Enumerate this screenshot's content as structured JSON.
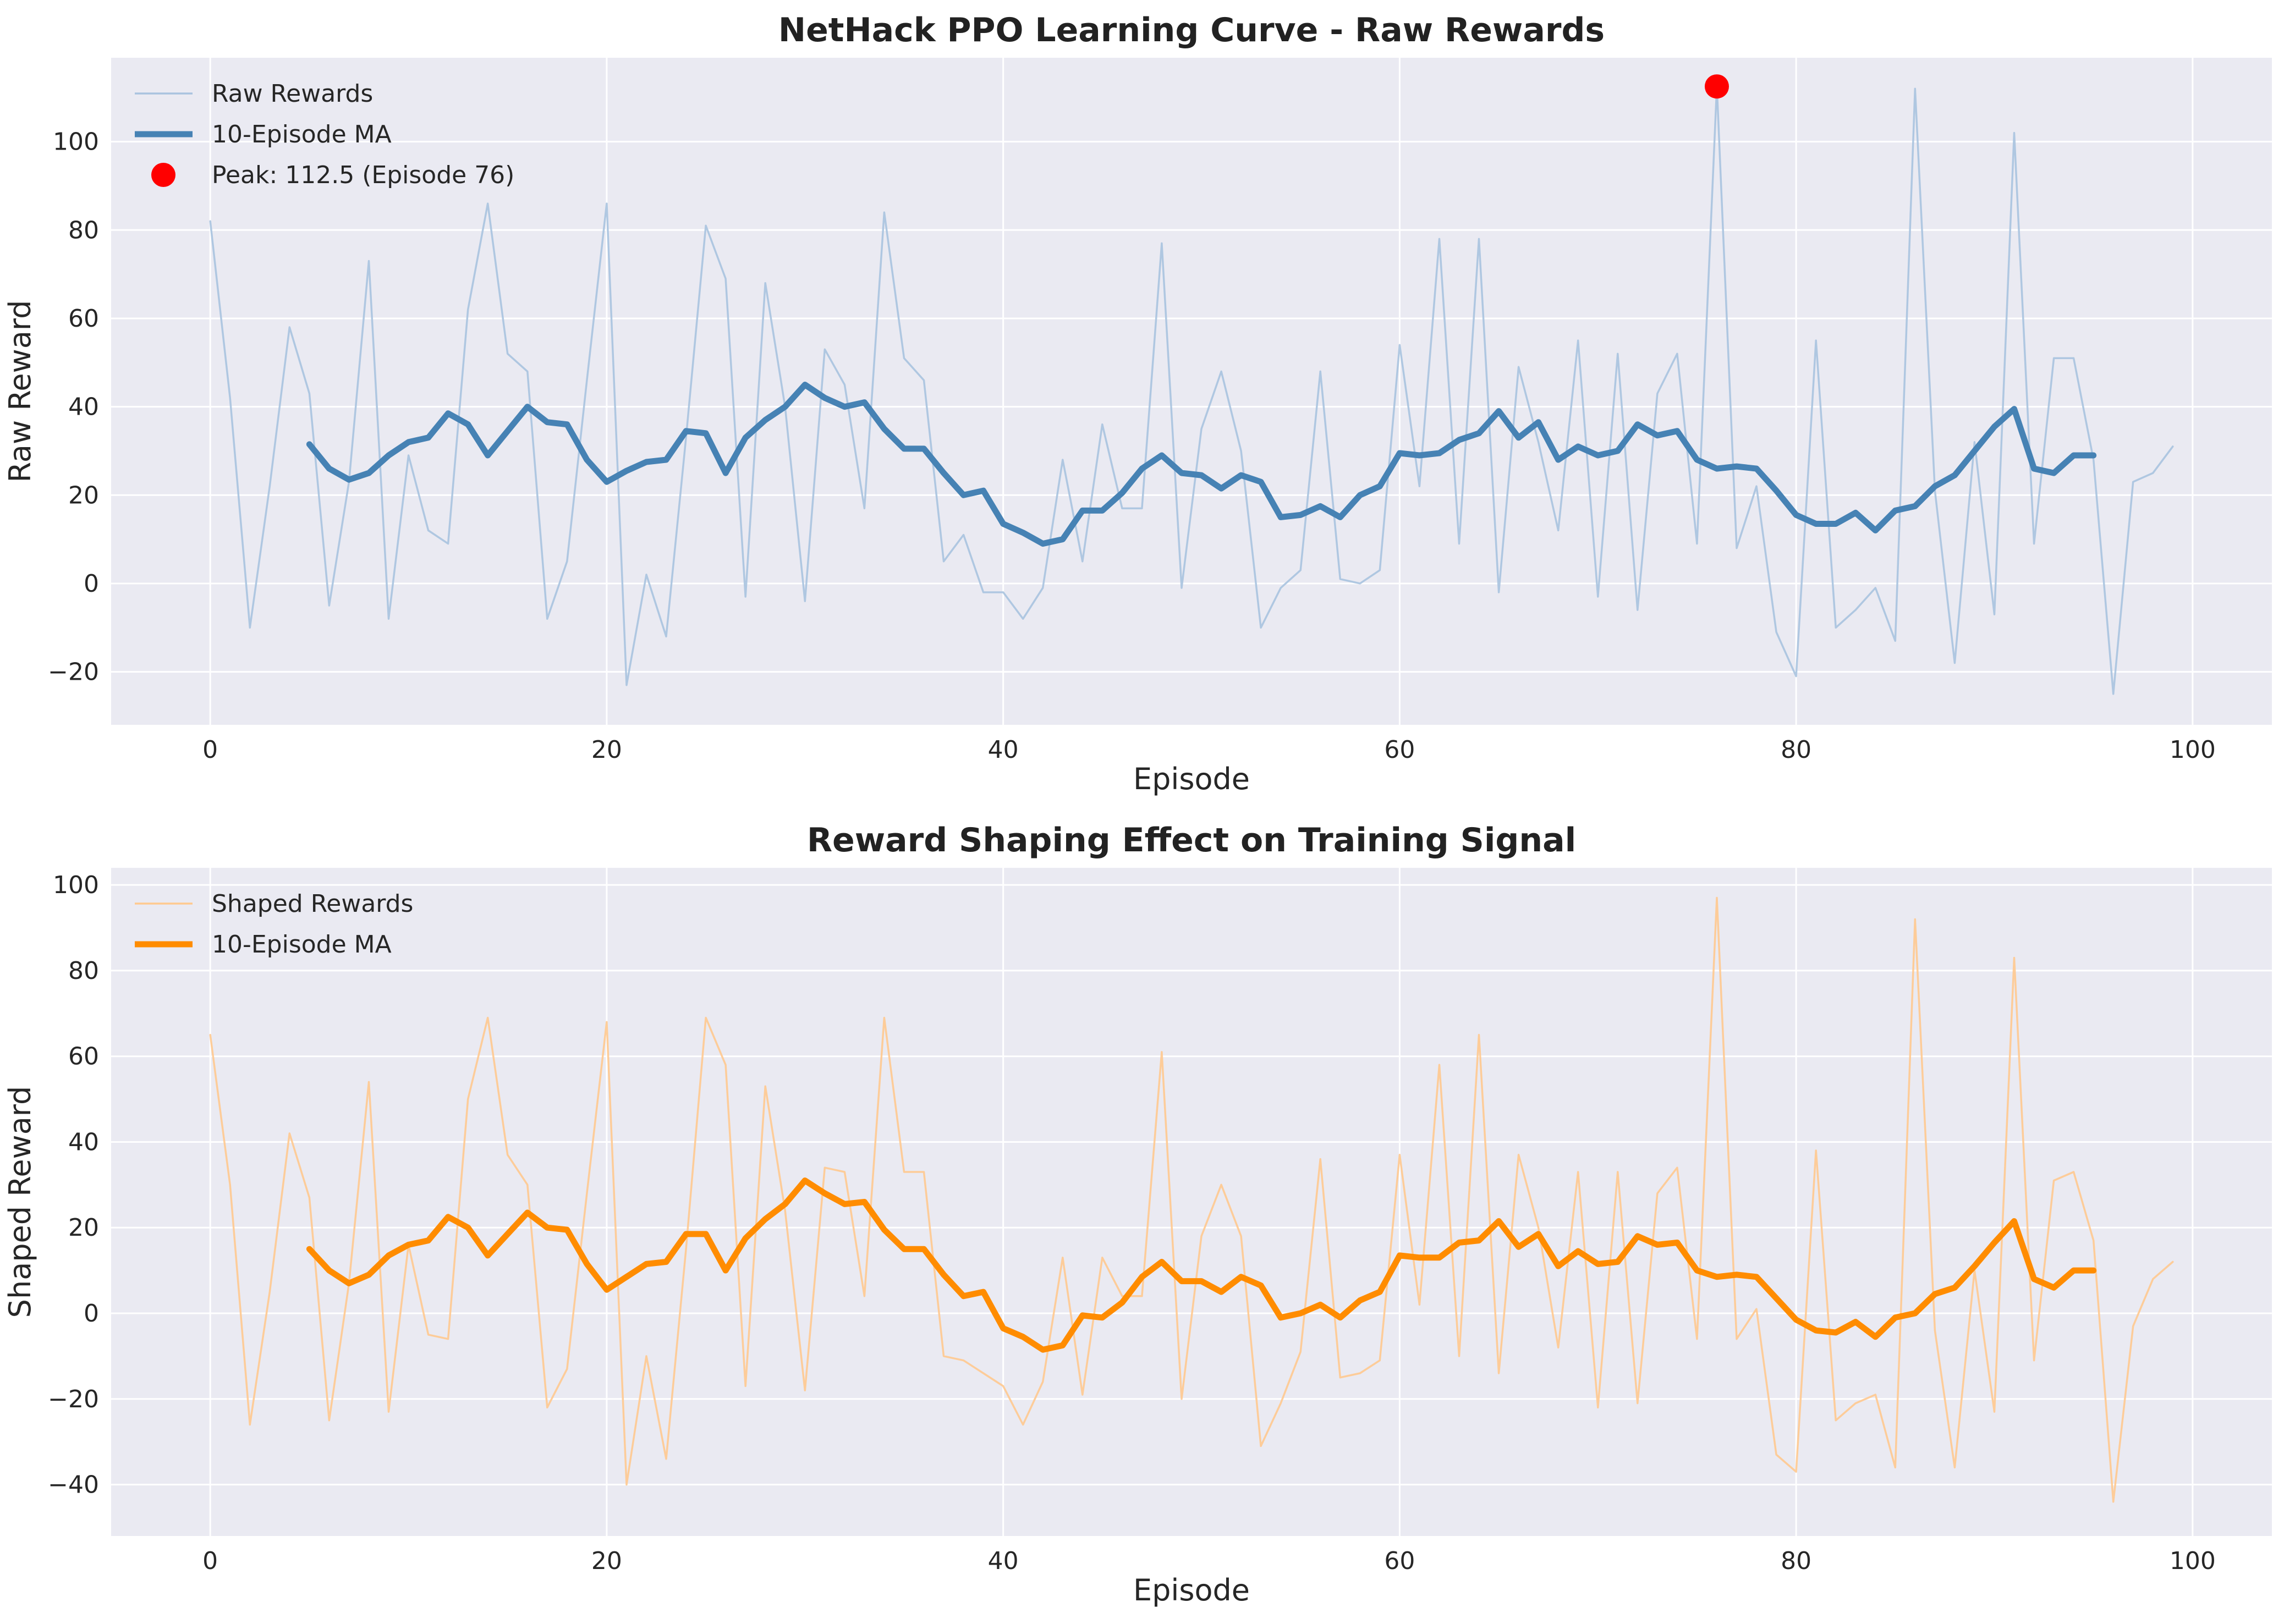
{
  "chart_data": [
    {
      "type": "line",
      "title": "NetHack PPO Learning Curve - Raw Rewards",
      "xlabel": "Episode",
      "ylabel": "Raw Reward",
      "xlim": [
        -5,
        104
      ],
      "ylim": [
        -32,
        119
      ],
      "xticks": [
        0,
        20,
        40,
        60,
        80,
        100
      ],
      "yticks": [
        -20,
        0,
        20,
        40,
        60,
        80,
        100
      ],
      "grid": true,
      "legend_position": "upper-left",
      "series": [
        {
          "name": "Raw Rewards",
          "color": "#a9c3df",
          "x_start": 0,
          "values": [
            82,
            42,
            -10,
            22,
            58,
            43,
            -5,
            23,
            73,
            -8,
            29,
            12,
            9,
            62,
            86,
            52,
            48,
            -8,
            5,
            46,
            86,
            -23,
            2,
            -12,
            33,
            81,
            69,
            -3,
            68,
            40,
            -4,
            53,
            45,
            17,
            84,
            51,
            46,
            5,
            11,
            -2,
            -2,
            -8,
            -1,
            28,
            5,
            36,
            17,
            17,
            77,
            -1,
            35,
            48,
            30,
            -10,
            -1,
            3,
            48,
            1,
            0,
            3,
            54,
            22,
            78,
            9,
            78,
            -2,
            49,
            32,
            12,
            55,
            -3,
            52,
            -6,
            43,
            52,
            9,
            112.5,
            8,
            22,
            -11,
            -21,
            55,
            -10,
            -6,
            -1,
            -13,
            112,
            21,
            -18,
            32,
            -7,
            102,
            9,
            51,
            51,
            28,
            -25,
            23,
            25,
            31
          ]
        },
        {
          "name": "10-Episode MA",
          "color": "#4682b4",
          "x_start": 5,
          "values": [
            31.5,
            26,
            23.5,
            25,
            29,
            32,
            33,
            38.5,
            36,
            29,
            34.5,
            40,
            36.5,
            36,
            28,
            23,
            25.5,
            27.5,
            28,
            34.5,
            34,
            25,
            33,
            37,
            40,
            45,
            42,
            40,
            41,
            35,
            30.5,
            30.5,
            25,
            20,
            21,
            13.5,
            11.5,
            9,
            10,
            16.5,
            16.5,
            20.5,
            26,
            29,
            25,
            24.5,
            21.5,
            24.5,
            23,
            15,
            15.5,
            17.5,
            15,
            20,
            22,
            29.5,
            29,
            29.5,
            32.5,
            34,
            39,
            33,
            36.5,
            28,
            31,
            29,
            30,
            36,
            33.5,
            34.5,
            28,
            26,
            26.5,
            26,
            21,
            15.5,
            13.5,
            13.5,
            16,
            12,
            16.5,
            17.5,
            22,
            24.5,
            30,
            35.5,
            39.5,
            26,
            25,
            29,
            29
          ]
        },
        {
          "name": "Peak: 112.5 (Episode 76)",
          "color": "#ff0000",
          "type": "scatter",
          "x": [
            76
          ],
          "values": [
            112.5
          ]
        }
      ]
    },
    {
      "type": "line",
      "title": "Reward Shaping Effect on Training Signal",
      "xlabel": "Episode",
      "ylabel": "Shaped Reward",
      "xlim": [
        -5,
        104
      ],
      "ylim": [
        -52,
        104
      ],
      "xticks": [
        0,
        20,
        40,
        60,
        80,
        100
      ],
      "yticks": [
        -40,
        -20,
        0,
        20,
        40,
        60,
        80,
        100
      ],
      "grid": true,
      "legend_position": "upper-left",
      "series": [
        {
          "name": "Shaped Rewards",
          "color": "#ffc98f",
          "x_start": 0,
          "values": [
            65,
            30,
            -26,
            5,
            42,
            27,
            -25,
            7,
            54,
            -23,
            16,
            -5,
            -6,
            50,
            69,
            37,
            30,
            -22,
            -13,
            28,
            68,
            -40,
            -10,
            -34,
            15,
            69,
            58,
            -17,
            53,
            24,
            -18,
            34,
            33,
            4,
            69,
            33,
            33,
            -10,
            -11,
            -14,
            -17,
            -26,
            -16,
            13,
            -19,
            13,
            4,
            4,
            61,
            -20,
            18,
            30,
            18,
            -31,
            -21,
            -9,
            36,
            -15,
            -14,
            -11,
            37,
            2,
            58,
            -10,
            65,
            -14,
            37,
            20,
            -8,
            33,
            -22,
            33,
            -21,
            28,
            34,
            -6,
            97,
            -6,
            1,
            -33,
            -37,
            38,
            -25,
            -21,
            -19,
            -36,
            92,
            -4,
            -36,
            10,
            -23,
            83,
            -11,
            31,
            33,
            17,
            -44,
            -3,
            8,
            12
          ]
        },
        {
          "name": "10-Episode MA",
          "color": "#ff8c00",
          "x_start": 5,
          "values": [
            15,
            10,
            7,
            9,
            13.5,
            16,
            17,
            22.5,
            20,
            13.5,
            18.5,
            23.5,
            20,
            19.5,
            11.5,
            5.5,
            8.5,
            11.5,
            12,
            18.5,
            18.5,
            10,
            17.5,
            22,
            25.5,
            31,
            28,
            25.5,
            26,
            19.5,
            15,
            15,
            9,
            4,
            5,
            -3.5,
            -5.5,
            -8.5,
            -7.5,
            -0.5,
            -1,
            2.5,
            8.5,
            12,
            7.5,
            7.5,
            5,
            8.5,
            6.5,
            -1,
            0,
            2,
            -1,
            3,
            5,
            13.5,
            13,
            13,
            16.5,
            17,
            21.5,
            15.5,
            18.5,
            11,
            14.5,
            11.5,
            12,
            18,
            16,
            16.5,
            10,
            8.5,
            9,
            8.5,
            3.5,
            -1.5,
            -4,
            -4.5,
            -2,
            -5.5,
            -1,
            0,
            4.5,
            6,
            11,
            16.5,
            21.5,
            8,
            6,
            10,
            10
          ]
        }
      ]
    }
  ]
}
